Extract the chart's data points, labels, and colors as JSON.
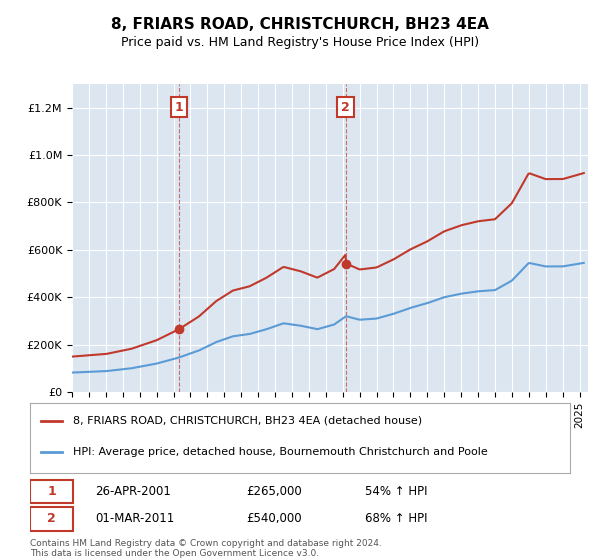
{
  "title": "8, FRIARS ROAD, CHRISTCHURCH, BH23 4EA",
  "subtitle": "Price paid vs. HM Land Registry's House Price Index (HPI)",
  "red_label": "8, FRIARS ROAD, CHRISTCHURCH, BH23 4EA (detached house)",
  "blue_label": "HPI: Average price, detached house, Bournemouth Christchurch and Poole",
  "annotation1": {
    "num": "1",
    "date": "26-APR-2001",
    "price": "£265,000",
    "hpi": "54% ↑ HPI"
  },
  "annotation2": {
    "num": "2",
    "date": "01-MAR-2011",
    "price": "£540,000",
    "hpi": "68% ↑ HPI"
  },
  "footer": "Contains HM Land Registry data © Crown copyright and database right 2024.\nThis data is licensed under the Open Government Licence v3.0.",
  "red_color": "#c0392b",
  "blue_color": "#5b9bd5",
  "background_color": "#dce6f1",
  "ylim": [
    0,
    1300000
  ],
  "yticks": [
    0,
    200000,
    400000,
    600000,
    800000,
    1000000,
    1200000
  ],
  "xlim_start": 1995.0,
  "xlim_end": 2025.5,
  "sale1_x": 2001.32,
  "sale1_y": 265000,
  "sale2_x": 2011.17,
  "sale2_y": 540000
}
